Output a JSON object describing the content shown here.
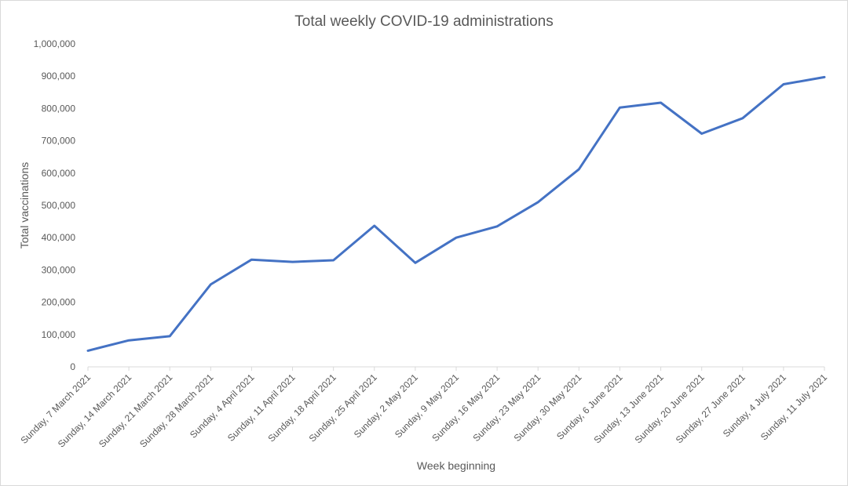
{
  "chart_data": {
    "type": "line",
    "title": "Total weekly COVID-19 administrations",
    "xlabel": "Week beginning",
    "ylabel": "Total vaccinations",
    "ylim": [
      0,
      1000000
    ],
    "y_ticks": [
      "0",
      "100,000",
      "200,000",
      "300,000",
      "400,000",
      "500,000",
      "600,000",
      "700,000",
      "800,000",
      "900,000",
      "1,000,000"
    ],
    "grid": false,
    "legend": "none",
    "categories": [
      "Sunday, 7 March 2021",
      "Sunday, 14 March 2021",
      "Sunday, 21 March 2021",
      "Sunday, 28 March 2021",
      "Sunday, 4 April 2021",
      "Sunday, 11 April 2021",
      "Sunday, 18 April 2021",
      "Sunday, 25 April 2021",
      "Sunday, 2 May 2021",
      "Sunday, 9 May 2021",
      "Sunday, 16 May 2021",
      "Sunday, 23 May 2021",
      "Sunday, 30 May 2021",
      "Sunday, 6 June 2021",
      "Sunday, 13 June 2021",
      "Sunday, 20 June 2021",
      "Sunday, 27 June 2021",
      "Sunday, 4 July 2021",
      "Sunday, 11 July 2021"
    ],
    "series": [
      {
        "color": "#4472c4",
        "values": [
          50000,
          82000,
          95000,
          255000,
          332000,
          325000,
          330000,
          437000,
          322000,
          400000,
          435000,
          510000,
          612000,
          803000,
          818000,
          722000,
          770000,
          875000,
          897000
        ]
      }
    ],
    "colors": {
      "axis": "#d9d9d9",
      "text": "#595959"
    }
  }
}
